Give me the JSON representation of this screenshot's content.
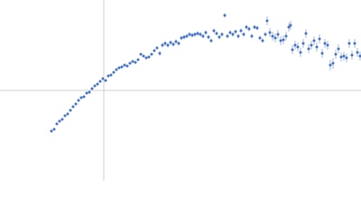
{
  "chart_data": {
    "type": "scatter",
    "color": "#4472c4",
    "error_color": "#a9bde3",
    "axis_color": "#d0d0d0",
    "xlim": [
      -115,
      285
    ],
    "ylim": [
      -100,
      100
    ],
    "x": [
      -58,
      -55,
      -52,
      -49,
      -46,
      -43,
      -40,
      -37,
      -34,
      -31,
      -28,
      -25,
      -22,
      -19,
      -16,
      -13,
      -10,
      -7,
      -4,
      -1,
      2,
      5,
      8,
      11,
      14,
      17,
      20,
      23,
      26,
      29,
      32,
      35,
      38,
      41,
      44,
      47,
      50,
      53,
      56,
      59,
      62,
      65,
      68,
      71,
      74,
      77,
      80,
      83,
      86,
      89,
      92,
      95,
      98,
      101,
      104,
      107,
      110,
      113,
      116,
      119,
      122,
      125,
      128,
      131,
      134,
      137,
      140,
      143,
      146,
      149,
      152,
      155,
      158,
      161,
      164,
      167,
      170,
      173,
      176,
      179,
      181,
      184,
      187,
      190,
      193,
      196,
      199,
      202,
      205,
      207,
      209,
      212,
      215,
      218,
      221,
      224,
      227,
      230,
      233,
      236,
      239,
      242,
      245,
      248,
      251,
      254,
      257,
      260,
      263,
      266,
      269,
      272,
      275,
      278,
      281,
      284
    ],
    "values": [
      -45,
      -43,
      -37,
      -34,
      -32,
      -28,
      -26,
      -22,
      -18,
      -15,
      -11,
      -8,
      -7,
      -3,
      -2,
      2,
      5,
      7,
      10,
      13,
      11,
      16,
      17,
      20,
      23,
      25,
      26,
      28,
      27,
      30,
      32,
      31,
      34,
      40,
      38,
      36,
      37,
      40,
      44,
      47,
      41,
      50,
      52,
      50,
      53,
      51,
      54,
      52,
      58,
      59,
      60,
      62,
      61,
      62,
      63,
      62,
      60,
      64,
      59,
      55,
      66,
      63,
      59,
      62,
      83,
      60,
      64,
      62,
      65,
      60,
      66,
      62,
      70,
      68,
      60,
      70,
      69,
      58,
      55,
      62,
      77,
      64,
      60,
      58,
      62,
      55,
      56,
      60,
      70,
      72,
      45,
      50,
      48,
      42,
      52,
      63,
      46,
      50,
      55,
      48,
      57,
      41,
      52,
      50,
      28,
      30,
      40,
      46,
      37,
      38,
      36,
      52,
      39,
      52,
      42,
      38
    ],
    "errors": [
      1.5,
      1.5,
      1.5,
      1.5,
      1.5,
      1.5,
      1.5,
      1.5,
      1.5,
      1.5,
      1.5,
      1.5,
      1.5,
      1.5,
      1.5,
      1.5,
      1.5,
      1.5,
      1.5,
      1.5,
      1.5,
      1.5,
      1.5,
      1.5,
      1.5,
      1.5,
      1.5,
      1.5,
      1.5,
      1.5,
      1.5,
      1.5,
      1.5,
      1.5,
      1.5,
      1.5,
      1.5,
      1.5,
      1.5,
      1.5,
      2.5,
      2.5,
      2.5,
      2.5,
      2.5,
      2.5,
      2.5,
      2.5,
      2.5,
      2.5,
      2.5,
      2.5,
      2.5,
      2.5,
      2.5,
      2.5,
      2.5,
      2.5,
      2.5,
      2.5,
      2.5,
      2.5,
      2.5,
      2.5,
      2.5,
      2.5,
      2.5,
      2.5,
      2.5,
      2.5,
      2.5,
      2.5,
      2.5,
      2.5,
      2.5,
      2.5,
      2.5,
      2.5,
      2.5,
      2.5,
      5,
      5,
      5,
      5,
      5,
      5,
      5,
      5,
      5,
      5,
      5,
      5,
      5,
      5,
      5,
      5,
      5,
      5,
      5,
      5,
      5,
      5,
      5,
      5,
      6,
      6,
      5,
      5,
      5,
      5,
      5,
      5,
      5,
      5,
      5,
      5
    ]
  }
}
